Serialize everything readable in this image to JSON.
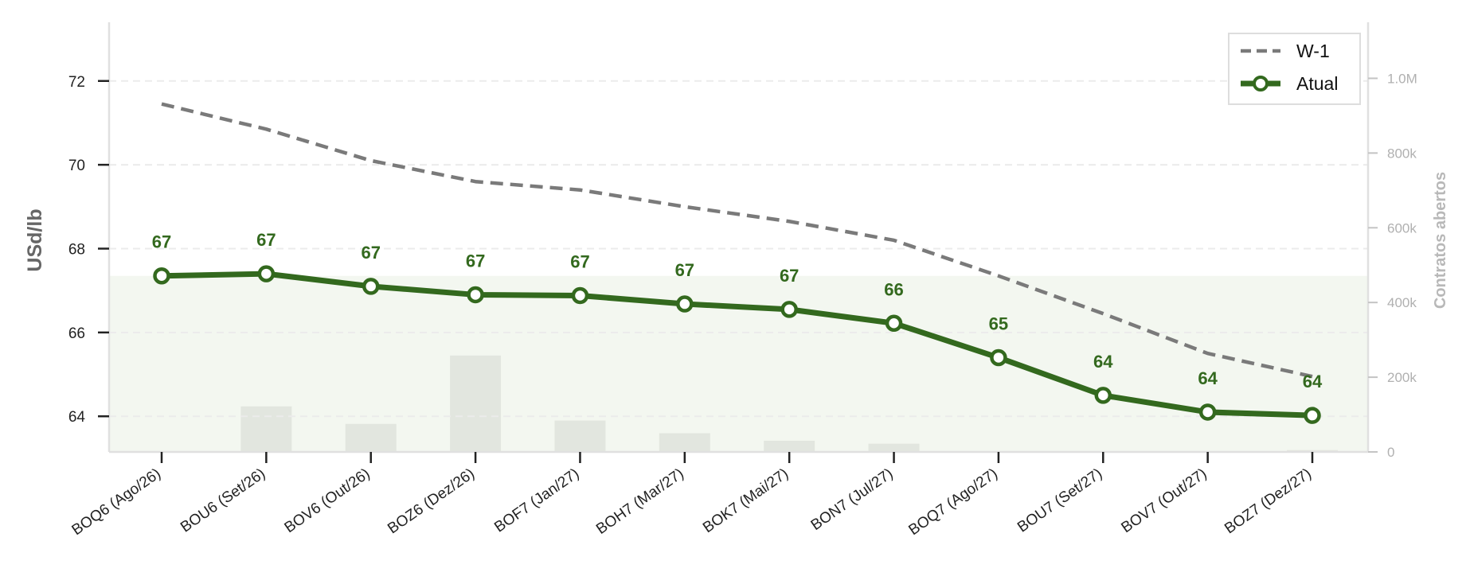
{
  "chart_data": {
    "type": "line",
    "categories": [
      "BOQ6 (Ago/26)",
      "BOU6 (Set/26)",
      "BOV6 (Out/26)",
      "BOZ6 (Dez/26)",
      "BOF7 (Jan/27)",
      "BOH7 (Mar/27)",
      "BOK7 (Mai/27)",
      "BON7 (Jul/27)",
      "BOQ7 (Ago/27)",
      "BOU7 (Set/27)",
      "BOV7 (Out/27)",
      "BOZ7 (Dez/27)"
    ],
    "series": [
      {
        "name": "W-1",
        "values": [
          71.45,
          70.85,
          70.1,
          69.6,
          69.4,
          69.0,
          68.65,
          68.2,
          67.35,
          66.45,
          65.5,
          64.95
        ],
        "color": "#7a7a7a",
        "style": "dashed"
      },
      {
        "name": "Atual",
        "values": [
          67.35,
          67.4,
          67.1,
          66.9,
          66.88,
          66.68,
          66.55,
          66.22,
          65.4,
          64.5,
          64.1,
          64.02
        ],
        "color": "#33691e",
        "style": "solid-markers",
        "labels": [
          "67",
          "67",
          "67",
          "67",
          "67",
          "67",
          "67",
          "66",
          "65",
          "64",
          "64",
          "64"
        ]
      }
    ],
    "open_interest": {
      "values": [
        0,
        122000,
        75000,
        258000,
        84000,
        50000,
        30000,
        22000,
        0,
        0,
        0,
        5000
      ],
      "color": "#e2e6df"
    },
    "ylabel": "USd/lb",
    "y2label": "Contratos abertos",
    "ylim": [
      63.15,
      73.4
    ],
    "y2lim": [
      0,
      1150000
    ],
    "yticks": [
      64,
      66,
      68,
      70,
      72
    ],
    "y2ticks": [
      0,
      200000,
      400000,
      600000,
      800000,
      1000000
    ],
    "y2ticklabels": [
      "0",
      "200k",
      "400k",
      "600k",
      "800k",
      "1.0M"
    ],
    "grid": true,
    "legend": "top-right",
    "shading_upper": 67.35,
    "shading_color": "#f3f7f0"
  }
}
